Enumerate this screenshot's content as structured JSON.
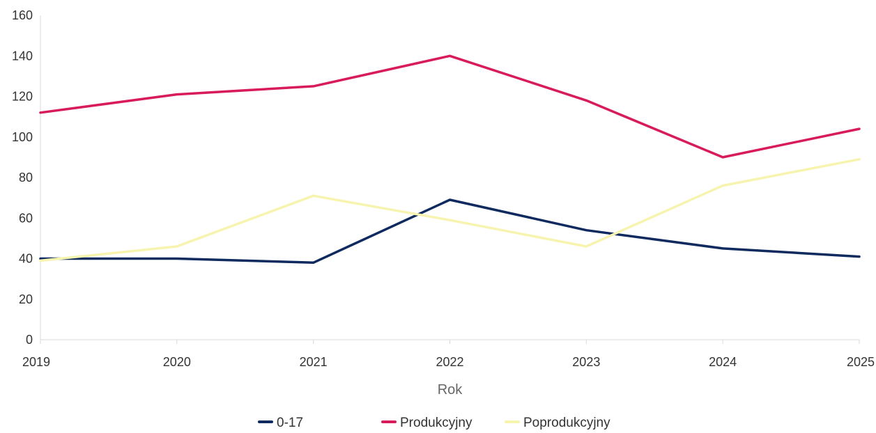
{
  "chart_data": {
    "type": "line",
    "title": "",
    "xlabel": "Rok",
    "ylabel": "",
    "x": [
      "2019",
      "2020",
      "2021",
      "2022",
      "2023",
      "2024",
      "2025"
    ],
    "ylim": [
      0,
      160
    ],
    "yticks": [
      "0",
      "20",
      "40",
      "60",
      "80",
      "100",
      "120",
      "140",
      "160"
    ],
    "grid": false,
    "legend_position": "bottom",
    "series": [
      {
        "name": "0-17",
        "color": "#0f2a5e",
        "values": [
          40,
          40,
          38,
          69,
          54,
          45,
          41
        ]
      },
      {
        "name": "Produkcyjny",
        "color": "#d81b5a",
        "values": [
          112,
          121,
          125,
          140,
          118,
          90,
          104
        ]
      },
      {
        "name": "Poprodukcyjny",
        "color": "#f7f4b0",
        "values": [
          39,
          46,
          71,
          59,
          46,
          76,
          89
        ]
      }
    ]
  }
}
